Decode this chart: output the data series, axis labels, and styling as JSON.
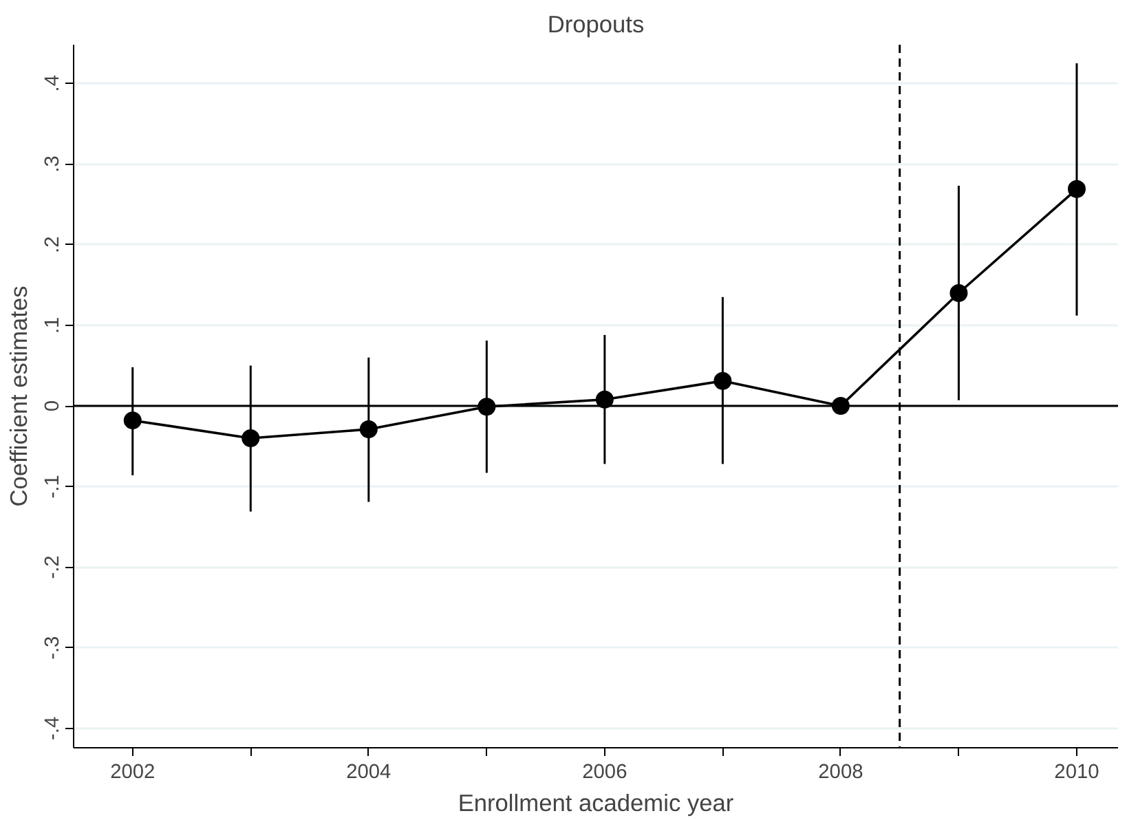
{
  "chart_data": {
    "type": "line",
    "title": "Dropouts",
    "xlabel": "Enrollment academic year",
    "ylabel": "Coefficient estimates",
    "x": [
      2002,
      2003,
      2004,
      2005,
      2006,
      2007,
      2008,
      2009,
      2010
    ],
    "series": [
      {
        "color": "#000000",
        "values": [
          -0.018,
          -0.04,
          -0.029,
          -0.001,
          0.008,
          0.031,
          0,
          0.14,
          0.269
        ],
        "errors": [
          [
            -0.086,
            0.048
          ],
          [
            -0.131,
            0.05
          ],
          [
            -0.119,
            0.06
          ],
          [
            -0.083,
            0.081
          ],
          [
            -0.072,
            0.088
          ],
          [
            -0.072,
            0.135
          ],
          null,
          [
            0.007,
            0.273
          ],
          [
            0.112,
            0.425
          ]
        ]
      }
    ],
    "marker": "circle",
    "line_style": "solid",
    "grid": "y",
    "xlim": [
      2001.5,
      2010.35
    ],
    "ylim": [
      -0.424,
      0.448
    ],
    "xticks": [
      2002,
      {
        "value": 2003,
        "label": null
      },
      2004,
      {
        "value": 2005,
        "label": null
      },
      2006,
      {
        "value": 2007,
        "label": null
      },
      2008,
      {
        "value": 2009,
        "label": null
      },
      2010
    ],
    "yticks": [
      {
        "value": -0.4,
        "label": "-.4"
      },
      {
        "value": -0.3,
        "label": "-.3"
      },
      {
        "value": -0.2,
        "label": "-.2"
      },
      {
        "value": -0.1,
        "label": "-.1"
      },
      0,
      {
        "value": 0.1,
        "label": ".1"
      },
      {
        "value": 0.2,
        "label": ".2"
      },
      {
        "value": 0.3,
        "label": ".3"
      },
      {
        "value": 0.4,
        "label": ".4"
      }
    ],
    "ref_lines": [
      {
        "axis": "y",
        "value": 0,
        "color": "#000000",
        "line_style": "solid"
      },
      {
        "axis": "x",
        "value": 2008.5,
        "color": "#000000",
        "line_style": "dashed"
      }
    ]
  }
}
